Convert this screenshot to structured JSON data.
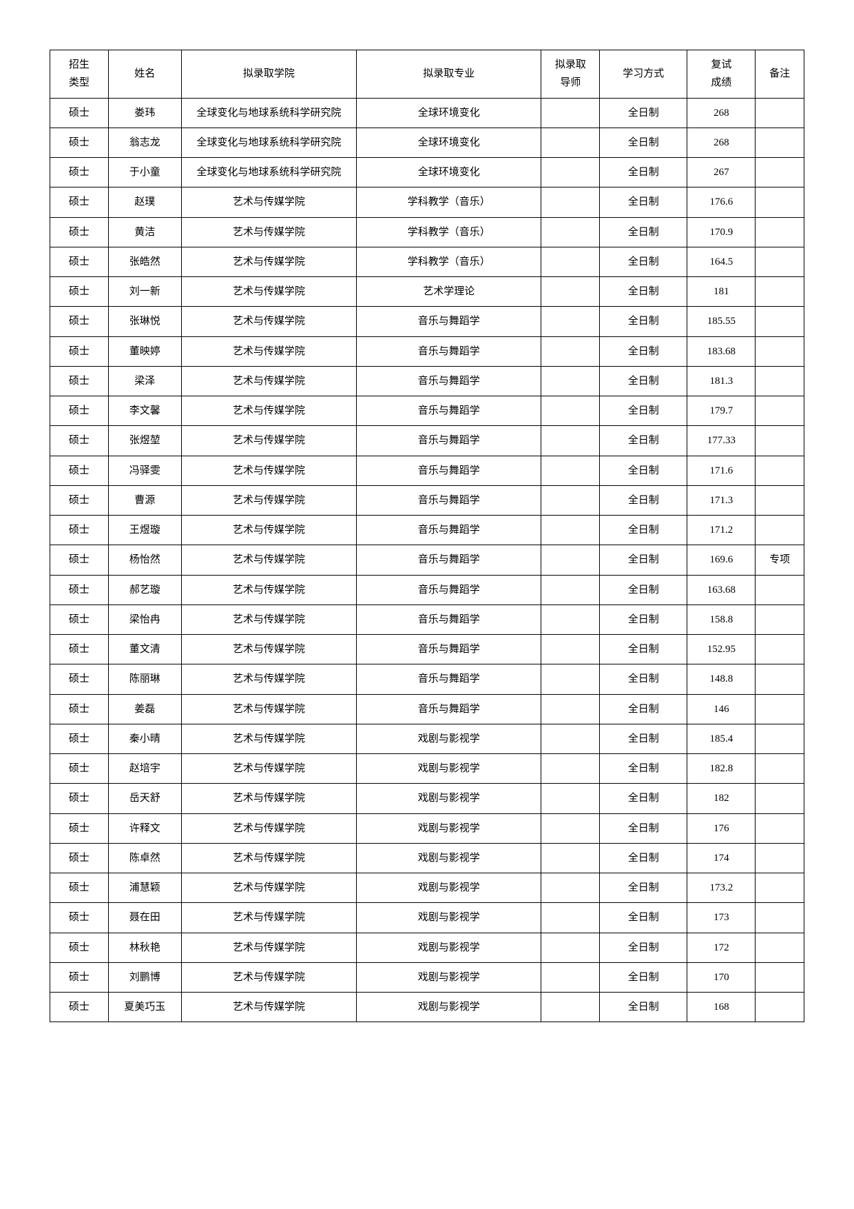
{
  "table": {
    "headers": {
      "type": "招生\n类型",
      "name": "姓名",
      "college": "拟录取学院",
      "major": "拟录取专业",
      "advisor": "拟录取\n导师",
      "mode": "学习方式",
      "score": "复试\n成绩",
      "note": "备注"
    },
    "rows": [
      {
        "type": "硕士",
        "name": "娄玮",
        "college": "全球变化与地球系统科学研究院",
        "major": "全球环境变化",
        "advisor": "",
        "mode": "全日制",
        "score": "268",
        "note": ""
      },
      {
        "type": "硕士",
        "name": "翁志龙",
        "college": "全球变化与地球系统科学研究院",
        "major": "全球环境变化",
        "advisor": "",
        "mode": "全日制",
        "score": "268",
        "note": ""
      },
      {
        "type": "硕士",
        "name": "于小童",
        "college": "全球变化与地球系统科学研究院",
        "major": "全球环境变化",
        "advisor": "",
        "mode": "全日制",
        "score": "267",
        "note": ""
      },
      {
        "type": "硕士",
        "name": "赵璞",
        "college": "艺术与传媒学院",
        "major": "学科教学（音乐）",
        "advisor": "",
        "mode": "全日制",
        "score": "176.6",
        "note": ""
      },
      {
        "type": "硕士",
        "name": "黄洁",
        "college": "艺术与传媒学院",
        "major": "学科教学（音乐）",
        "advisor": "",
        "mode": "全日制",
        "score": "170.9",
        "note": ""
      },
      {
        "type": "硕士",
        "name": "张皓然",
        "college": "艺术与传媒学院",
        "major": "学科教学（音乐）",
        "advisor": "",
        "mode": "全日制",
        "score": "164.5",
        "note": ""
      },
      {
        "type": "硕士",
        "name": "刘一新",
        "college": "艺术与传媒学院",
        "major": "艺术学理论",
        "advisor": "",
        "mode": "全日制",
        "score": "181",
        "note": ""
      },
      {
        "type": "硕士",
        "name": "张琳悦",
        "college": "艺术与传媒学院",
        "major": "音乐与舞蹈学",
        "advisor": "",
        "mode": "全日制",
        "score": "185.55",
        "note": ""
      },
      {
        "type": "硕士",
        "name": "董映婷",
        "college": "艺术与传媒学院",
        "major": "音乐与舞蹈学",
        "advisor": "",
        "mode": "全日制",
        "score": "183.68",
        "note": ""
      },
      {
        "type": "硕士",
        "name": "梁泽",
        "college": "艺术与传媒学院",
        "major": "音乐与舞蹈学",
        "advisor": "",
        "mode": "全日制",
        "score": "181.3",
        "note": ""
      },
      {
        "type": "硕士",
        "name": "李文馨",
        "college": "艺术与传媒学院",
        "major": "音乐与舞蹈学",
        "advisor": "",
        "mode": "全日制",
        "score": "179.7",
        "note": ""
      },
      {
        "type": "硕士",
        "name": "张煜堃",
        "college": "艺术与传媒学院",
        "major": "音乐与舞蹈学",
        "advisor": "",
        "mode": "全日制",
        "score": "177.33",
        "note": ""
      },
      {
        "type": "硕士",
        "name": "冯驿雯",
        "college": "艺术与传媒学院",
        "major": "音乐与舞蹈学",
        "advisor": "",
        "mode": "全日制",
        "score": "171.6",
        "note": ""
      },
      {
        "type": "硕士",
        "name": "曹源",
        "college": "艺术与传媒学院",
        "major": "音乐与舞蹈学",
        "advisor": "",
        "mode": "全日制",
        "score": "171.3",
        "note": ""
      },
      {
        "type": "硕士",
        "name": "王煜璇",
        "college": "艺术与传媒学院",
        "major": "音乐与舞蹈学",
        "advisor": "",
        "mode": "全日制",
        "score": "171.2",
        "note": ""
      },
      {
        "type": "硕士",
        "name": "杨怡然",
        "college": "艺术与传媒学院",
        "major": "音乐与舞蹈学",
        "advisor": "",
        "mode": "全日制",
        "score": "169.6",
        "note": "专项"
      },
      {
        "type": "硕士",
        "name": "郝艺璇",
        "college": "艺术与传媒学院",
        "major": "音乐与舞蹈学",
        "advisor": "",
        "mode": "全日制",
        "score": "163.68",
        "note": ""
      },
      {
        "type": "硕士",
        "name": "梁怡冉",
        "college": "艺术与传媒学院",
        "major": "音乐与舞蹈学",
        "advisor": "",
        "mode": "全日制",
        "score": "158.8",
        "note": ""
      },
      {
        "type": "硕士",
        "name": "董文清",
        "college": "艺术与传媒学院",
        "major": "音乐与舞蹈学",
        "advisor": "",
        "mode": "全日制",
        "score": "152.95",
        "note": ""
      },
      {
        "type": "硕士",
        "name": "陈丽琳",
        "college": "艺术与传媒学院",
        "major": "音乐与舞蹈学",
        "advisor": "",
        "mode": "全日制",
        "score": "148.8",
        "note": ""
      },
      {
        "type": "硕士",
        "name": "姜磊",
        "college": "艺术与传媒学院",
        "major": "音乐与舞蹈学",
        "advisor": "",
        "mode": "全日制",
        "score": "146",
        "note": ""
      },
      {
        "type": "硕士",
        "name": "秦小晴",
        "college": "艺术与传媒学院",
        "major": "戏剧与影视学",
        "advisor": "",
        "mode": "全日制",
        "score": "185.4",
        "note": ""
      },
      {
        "type": "硕士",
        "name": "赵培宇",
        "college": "艺术与传媒学院",
        "major": "戏剧与影视学",
        "advisor": "",
        "mode": "全日制",
        "score": "182.8",
        "note": ""
      },
      {
        "type": "硕士",
        "name": "岳天舒",
        "college": "艺术与传媒学院",
        "major": "戏剧与影视学",
        "advisor": "",
        "mode": "全日制",
        "score": "182",
        "note": ""
      },
      {
        "type": "硕士",
        "name": "许释文",
        "college": "艺术与传媒学院",
        "major": "戏剧与影视学",
        "advisor": "",
        "mode": "全日制",
        "score": "176",
        "note": ""
      },
      {
        "type": "硕士",
        "name": "陈卓然",
        "college": "艺术与传媒学院",
        "major": "戏剧与影视学",
        "advisor": "",
        "mode": "全日制",
        "score": "174",
        "note": ""
      },
      {
        "type": "硕士",
        "name": "浦慧颖",
        "college": "艺术与传媒学院",
        "major": "戏剧与影视学",
        "advisor": "",
        "mode": "全日制",
        "score": "173.2",
        "note": ""
      },
      {
        "type": "硕士",
        "name": "聂在田",
        "college": "艺术与传媒学院",
        "major": "戏剧与影视学",
        "advisor": "",
        "mode": "全日制",
        "score": "173",
        "note": ""
      },
      {
        "type": "硕士",
        "name": "林秋艳",
        "college": "艺术与传媒学院",
        "major": "戏剧与影视学",
        "advisor": "",
        "mode": "全日制",
        "score": "172",
        "note": ""
      },
      {
        "type": "硕士",
        "name": "刘鹏博",
        "college": "艺术与传媒学院",
        "major": "戏剧与影视学",
        "advisor": "",
        "mode": "全日制",
        "score": "170",
        "note": ""
      },
      {
        "type": "硕士",
        "name": "夏美巧玉",
        "college": "艺术与传媒学院",
        "major": "戏剧与影视学",
        "advisor": "",
        "mode": "全日制",
        "score": "168",
        "note": ""
      }
    ]
  }
}
